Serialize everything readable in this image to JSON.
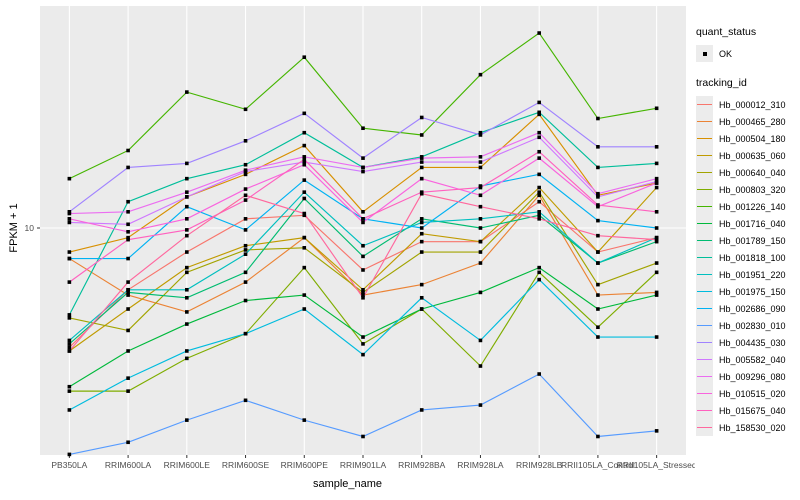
{
  "chart_data": {
    "type": "line",
    "title": "",
    "xlabel": "sample_name",
    "ylabel": "FPKM + 1",
    "y_scale": "log10",
    "y_ticks": [
      10
    ],
    "y_domain": [
      2.8,
      33.5
    ],
    "grid": true,
    "panel_bg": "#ebebeb",
    "gridline_color": "#ffffff",
    "point_shape": "square",
    "point_color": "#000000",
    "legend_position": "right",
    "categories": [
      "PB350LA",
      "RRIM600LA",
      "RRIM600LE",
      "RRIM600SE",
      "RRIM600PE",
      "RRIM901LA",
      "RRIM928BA",
      "RRIM928LA",
      "RRIM928LB",
      "RRII105LA_Control",
      "RRII105LA_Stressed"
    ],
    "series": [
      {
        "tracking_id": "Hb_000012_310",
        "color": "#F8766D",
        "quant_status": "OK",
        "values": [
          5.3,
          7.2,
          8.8,
          10.5,
          10.7,
          8.0,
          9.3,
          9.3,
          11.5,
          8.8,
          9.5
        ]
      },
      {
        "tracking_id": "Hb_000465_280",
        "color": "#EB8335",
        "quant_status": "OK",
        "values": [
          8.5,
          7.0,
          6.4,
          7.5,
          9.5,
          7.0,
          7.4,
          8.3,
          11.9,
          7.0,
          7.1
        ]
      },
      {
        "tracking_id": "Hb_000504_180",
        "color": "#D89000",
        "quant_status": "OK",
        "values": [
          8.8,
          9.5,
          11.8,
          13.3,
          15.5,
          10.9,
          13.8,
          13.8,
          18.3,
          11.9,
          12.7
        ]
      },
      {
        "tracking_id": "Hb_000635_060",
        "color": "#C09B00",
        "quant_status": "OK",
        "values": [
          5.2,
          6.5,
          8.1,
          9.1,
          9.5,
          7.2,
          9.7,
          9.3,
          12.4,
          8.8,
          12.4
        ]
      },
      {
        "tracking_id": "Hb_000640_040",
        "color": "#A2A400",
        "quant_status": "OK",
        "values": [
          6.2,
          5.8,
          7.9,
          8.9,
          9.0,
          7.1,
          8.8,
          8.8,
          12.1,
          7.4,
          8.3
        ]
      },
      {
        "tracking_id": "Hb_000803_320",
        "color": "#7FAD00",
        "quant_status": "OK",
        "values": [
          4.2,
          4.2,
          5.0,
          5.7,
          8.1,
          5.4,
          6.5,
          4.8,
          7.9,
          5.9,
          7.9
        ]
      },
      {
        "tracking_id": "Hb_001226_140",
        "color": "#45B500",
        "quant_status": "OK",
        "values": [
          13.0,
          15.1,
          20.6,
          18.8,
          24.8,
          17.0,
          16.4,
          22.6,
          28.2,
          17.9,
          18.9
        ]
      },
      {
        "tracking_id": "Hb_001716_040",
        "color": "#00B93C",
        "quant_status": "OK",
        "values": [
          4.3,
          5.2,
          6.0,
          6.8,
          7.0,
          5.6,
          6.5,
          7.1,
          8.1,
          6.5,
          7.0
        ]
      },
      {
        "tracking_id": "Hb_001789_150",
        "color": "#00BC71",
        "quant_status": "OK",
        "values": [
          5.4,
          7.1,
          6.9,
          7.9,
          11.7,
          8.6,
          10.5,
          10.0,
          10.7,
          8.3,
          9.3
        ]
      },
      {
        "tracking_id": "Hb_001818_100",
        "color": "#00BE9A",
        "quant_status": "OK",
        "values": [
          6.3,
          11.5,
          13.0,
          14.0,
          16.6,
          13.8,
          14.6,
          16.6,
          18.5,
          13.8,
          14.1
        ]
      },
      {
        "tracking_id": "Hb_001951_220",
        "color": "#00BFBF",
        "quant_status": "OK",
        "values": [
          5.5,
          7.2,
          7.2,
          8.7,
          12.1,
          9.1,
          10.3,
          10.5,
          10.9,
          8.3,
          9.5
        ]
      },
      {
        "tracking_id": "Hb_001975_150",
        "color": "#00BCDE",
        "quant_status": "OK",
        "values": [
          3.8,
          4.5,
          5.2,
          5.7,
          6.5,
          5.1,
          6.9,
          5.5,
          7.6,
          5.6,
          5.6
        ]
      },
      {
        "tracking_id": "Hb_002686_090",
        "color": "#00B2F3",
        "quant_status": "OK",
        "values": [
          8.5,
          8.5,
          11.2,
          9.9,
          12.9,
          10.5,
          10.0,
          12.5,
          13.3,
          10.4,
          10.0
        ]
      },
      {
        "tracking_id": "Hb_002830_010",
        "color": "#569BFF",
        "quant_status": "OK",
        "values": [
          3.0,
          3.2,
          3.6,
          4.0,
          3.6,
          3.3,
          3.8,
          3.9,
          4.6,
          3.3,
          3.4
        ]
      },
      {
        "tracking_id": "Hb_004435_030",
        "color": "#A083FF",
        "quant_status": "OK",
        "values": [
          10.9,
          13.8,
          14.1,
          15.9,
          18.4,
          14.5,
          18.0,
          16.4,
          19.5,
          15.4,
          15.4
        ]
      },
      {
        "tracking_id": "Hb_005582_040",
        "color": "#CF78FF",
        "quant_status": "OK",
        "values": [
          10.3,
          10.2,
          11.8,
          13.5,
          14.2,
          13.5,
          14.2,
          14.2,
          16.2,
          11.8,
          12.8
        ]
      },
      {
        "tracking_id": "Hb_009296_080",
        "color": "#EB6DF1",
        "quant_status": "OK",
        "values": [
          10.8,
          10.9,
          12.1,
          13.6,
          14.6,
          13.8,
          14.5,
          14.6,
          16.6,
          12.0,
          13.0
        ]
      },
      {
        "tracking_id": "Hb_010515_020",
        "color": "#F964DE",
        "quant_status": "OK",
        "values": [
          10.5,
          9.8,
          10.5,
          12.3,
          14.0,
          10.3,
          13.0,
          11.9,
          14.5,
          11.2,
          12.7
        ]
      },
      {
        "tracking_id": "Hb_015675_040",
        "color": "#FF61BF",
        "quant_status": "OK",
        "values": [
          7.5,
          9.4,
          9.9,
          11.6,
          14.4,
          10.5,
          12.1,
          12.4,
          15.0,
          11.3,
          10.9
        ]
      },
      {
        "tracking_id": "Hb_158530_020",
        "color": "#FF689E",
        "quant_status": "OK",
        "values": [
          5.2,
          7.5,
          9.6,
          11.9,
          10.8,
          6.9,
          12.0,
          11.2,
          10.5,
          9.6,
          9.4
        ]
      }
    ]
  },
  "legend": {
    "quant_title": "quant_status",
    "quant_items": [
      {
        "label": "OK",
        "shape": "square"
      }
    ],
    "tracking_title": "tracking_id"
  },
  "axes": {
    "y_tick_label": "10"
  }
}
